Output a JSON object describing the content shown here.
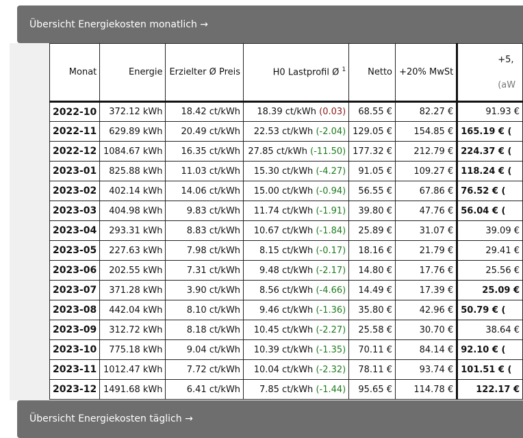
{
  "monthly_header": {
    "title": "Übersicht Energiekosten monatlich →"
  },
  "daily_header": {
    "title": "Übersicht Energiekosten täglich →"
  },
  "table": {
    "columns": {
      "monat": "Monat",
      "energie": "Energie",
      "preis": "Erzielter Ø Preis",
      "h0": "H0 Lastprofil Ø",
      "h0_sup": "1",
      "netto": "Netto",
      "mwst": "+20% MwSt",
      "plus": "+5,",
      "plus_sub": "(aW"
    },
    "rows": [
      {
        "month": "2022-10",
        "energy": "372.12 kWh",
        "price": "18.42 ct/kWh",
        "h0": "18.39 ct/kWh",
        "diff": "(0.03)",
        "diff_sign": "pos",
        "net": "68.55 €",
        "vat": "82.27 €",
        "plus": "91.93 €",
        "plus_bold": false
      },
      {
        "month": "2022-11",
        "energy": "629.89 kWh",
        "price": "20.49 ct/kWh",
        "h0": "22.53 ct/kWh",
        "diff": "(-2.04)",
        "diff_sign": "neg",
        "net": "129.05 €",
        "vat": "154.85 €",
        "plus": "165.19 € (",
        "plus_bold": true
      },
      {
        "month": "2022-12",
        "energy": "1084.67 kWh",
        "price": "16.35 ct/kWh",
        "h0": "27.85 ct/kWh",
        "diff": "(-11.50)",
        "diff_sign": "neg",
        "net": "177.32 €",
        "vat": "212.79 €",
        "plus": "224.37 € (",
        "plus_bold": true
      },
      {
        "month": "2023-01",
        "energy": "825.88 kWh",
        "price": "11.03 ct/kWh",
        "h0": "15.30 ct/kWh",
        "diff": "(-4.27)",
        "diff_sign": "neg",
        "net": "91.05 €",
        "vat": "109.27 €",
        "plus": "118.24 € (",
        "plus_bold": true
      },
      {
        "month": "2023-02",
        "energy": "402.14 kWh",
        "price": "14.06 ct/kWh",
        "h0": "15.00 ct/kWh",
        "diff": "(-0.94)",
        "diff_sign": "neg",
        "net": "56.55 €",
        "vat": "67.86 €",
        "plus": "76.52 € (",
        "plus_bold": true
      },
      {
        "month": "2023-03",
        "energy": "404.98 kWh",
        "price": "9.83 ct/kWh",
        "h0": "11.74 ct/kWh",
        "diff": "(-1.91)",
        "diff_sign": "neg",
        "net": "39.80 €",
        "vat": "47.76 €",
        "plus": "56.04 € (",
        "plus_bold": true
      },
      {
        "month": "2023-04",
        "energy": "293.31 kWh",
        "price": "8.83 ct/kWh",
        "h0": "10.67 ct/kWh",
        "diff": "(-1.84)",
        "diff_sign": "neg",
        "net": "25.89 €",
        "vat": "31.07 €",
        "plus": "39.09 €",
        "plus_bold": false
      },
      {
        "month": "2023-05",
        "energy": "227.63 kWh",
        "price": "7.98 ct/kWh",
        "h0": "8.15 ct/kWh",
        "diff": "(-0.17)",
        "diff_sign": "neg",
        "net": "18.16 €",
        "vat": "21.79 €",
        "plus": "29.41 €",
        "plus_bold": false
      },
      {
        "month": "2023-06",
        "energy": "202.55 kWh",
        "price": "7.31 ct/kWh",
        "h0": "9.48 ct/kWh",
        "diff": "(-2.17)",
        "diff_sign": "neg",
        "net": "14.80 €",
        "vat": "17.76 €",
        "plus": "25.56 €",
        "plus_bold": false
      },
      {
        "month": "2023-07",
        "energy": "371.28 kWh",
        "price": "3.90 ct/kWh",
        "h0": "8.56 ct/kWh",
        "diff": "(-4.66)",
        "diff_sign": "neg",
        "net": "14.49 €",
        "vat": "17.39 €",
        "plus": "25.09 €",
        "plus_bold": true
      },
      {
        "month": "2023-08",
        "energy": "442.04 kWh",
        "price": "8.10 ct/kWh",
        "h0": "9.46 ct/kWh",
        "diff": "(-1.36)",
        "diff_sign": "neg",
        "net": "35.80 €",
        "vat": "42.96 €",
        "plus": "50.79 € (",
        "plus_bold": true
      },
      {
        "month": "2023-09",
        "energy": "312.72 kWh",
        "price": "8.18 ct/kWh",
        "h0": "10.45 ct/kWh",
        "diff": "(-2.27)",
        "diff_sign": "neg",
        "net": "25.58 €",
        "vat": "30.70 €",
        "plus": "38.64 €",
        "plus_bold": false
      },
      {
        "month": "2023-10",
        "energy": "775.18 kWh",
        "price": "9.04 ct/kWh",
        "h0": "10.39 ct/kWh",
        "diff": "(-1.35)",
        "diff_sign": "neg",
        "net": "70.11 €",
        "vat": "84.14 €",
        "plus": "92.10 € (",
        "plus_bold": true
      },
      {
        "month": "2023-11",
        "energy": "1012.47 kWh",
        "price": "7.72 ct/kWh",
        "h0": "10.04 ct/kWh",
        "diff": "(-2.32)",
        "diff_sign": "neg",
        "net": "78.11 €",
        "vat": "93.74 €",
        "plus": "101.51 € (",
        "plus_bold": true
      },
      {
        "month": "2023-12",
        "energy": "1491.68 kWh",
        "price": "6.41 ct/kWh",
        "h0": "7.85 ct/kWh",
        "diff": "(-1.44)",
        "diff_sign": "neg",
        "net": "95.65 €",
        "vat": "114.78 €",
        "plus": "122.17 €",
        "plus_bold": true
      }
    ]
  },
  "colors": {
    "negative_diff": "#1e7a1e",
    "positive_diff": "#8b1a1a",
    "header_bg": "#6e6e6e"
  }
}
